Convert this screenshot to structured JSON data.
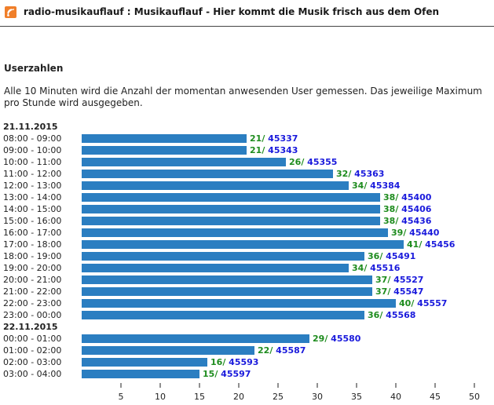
{
  "header": {
    "title": "radio-musikauflauf : Musikauflauf - Hier kommt die Musik frisch aus dem Ofen",
    "logo_icon": "radio-wave-icon",
    "accent": "#f07f2a"
  },
  "section": {
    "heading": "Userzahlen",
    "description": "Alle 10 Minuten wird die Anzahl der momentan anwesenden User gemessen. Das jeweilige Maximum pro Stunde wird ausgegeben."
  },
  "colors": {
    "bar": "#2b7ec1",
    "users": "#1e8c1e",
    "total": "#1a1adc"
  },
  "chart_data": {
    "type": "bar",
    "orientation": "horizontal",
    "xlim": [
      0,
      50
    ],
    "xticks": [
      5,
      10,
      15,
      20,
      25,
      30,
      35,
      40,
      45,
      50
    ],
    "groups": [
      {
        "date": "21.11.2015",
        "rows": [
          {
            "label": "08:00 - 09:00",
            "value": 21,
            "total": 45337
          },
          {
            "label": "09:00 - 10:00",
            "value": 21,
            "total": 45343
          },
          {
            "label": "10:00 - 11:00",
            "value": 26,
            "total": 45355
          },
          {
            "label": "11:00 - 12:00",
            "value": 32,
            "total": 45363
          },
          {
            "label": "12:00 - 13:00",
            "value": 34,
            "total": 45384
          },
          {
            "label": "13:00 - 14:00",
            "value": 38,
            "total": 45400
          },
          {
            "label": "14:00 - 15:00",
            "value": 38,
            "total": 45406
          },
          {
            "label": "15:00 - 16:00",
            "value": 38,
            "total": 45436
          },
          {
            "label": "16:00 - 17:00",
            "value": 39,
            "total": 45440
          },
          {
            "label": "17:00 - 18:00",
            "value": 41,
            "total": 45456
          },
          {
            "label": "18:00 - 19:00",
            "value": 36,
            "total": 45491
          },
          {
            "label": "19:00 - 20:00",
            "value": 34,
            "total": 45516
          },
          {
            "label": "20:00 - 21:00",
            "value": 37,
            "total": 45527
          },
          {
            "label": "21:00 - 22:00",
            "value": 37,
            "total": 45547
          },
          {
            "label": "22:00 - 23:00",
            "value": 40,
            "total": 45557
          },
          {
            "label": "23:00 - 00:00",
            "value": 36,
            "total": 45568
          }
        ]
      },
      {
        "date": "22.11.2015",
        "rows": [
          {
            "label": "00:00 - 01:00",
            "value": 29,
            "total": 45580
          },
          {
            "label": "01:00 - 02:00",
            "value": 22,
            "total": 45587
          },
          {
            "label": "02:00 - 03:00",
            "value": 16,
            "total": 45593
          },
          {
            "label": "03:00 - 04:00",
            "value": 15,
            "total": 45597
          }
        ]
      }
    ]
  }
}
